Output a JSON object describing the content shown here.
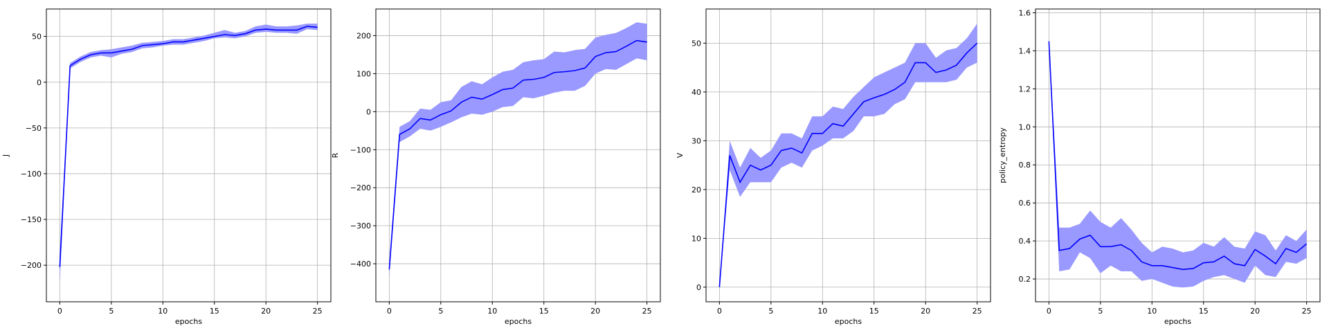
{
  "chart_data": [
    {
      "type": "line",
      "xlabel": "epochs",
      "ylabel": "J",
      "xlim": [
        -1.3,
        26.3
      ],
      "ylim": [
        -240,
        80
      ],
      "xticks": [
        0,
        5,
        10,
        15,
        20,
        25
      ],
      "yticks": [
        -200,
        -150,
        -100,
        -50,
        0,
        50
      ],
      "ytick_labels": [
        "−200",
        "−150",
        "−100",
        "−50",
        "0",
        "50"
      ],
      "grid": true,
      "line_color": "#0000ff",
      "band_color": "#9999ff",
      "x": [
        0,
        1,
        2,
        3,
        4,
        5,
        6,
        7,
        8,
        9,
        10,
        11,
        12,
        13,
        14,
        15,
        16,
        17,
        18,
        19,
        20,
        21,
        22,
        23,
        24,
        25
      ],
      "y": [
        -202,
        18,
        25,
        30,
        32,
        32,
        34,
        36,
        40,
        41,
        42,
        44,
        44,
        46,
        48,
        50,
        52,
        51,
        53,
        57,
        58,
        57,
        57,
        57,
        61,
        60
      ],
      "lower": [
        -220,
        15,
        22,
        27,
        29,
        27,
        31,
        33,
        37,
        38,
        40,
        41,
        41,
        43,
        45,
        48,
        49,
        48,
        50,
        54,
        55,
        54,
        54,
        53,
        58,
        57
      ],
      "upper": [
        -185,
        21,
        28,
        33,
        35,
        36,
        38,
        40,
        43,
        44,
        45,
        47,
        47,
        49,
        51,
        54,
        57,
        54,
        56,
        61,
        63,
        61,
        61,
        62,
        64,
        64
      ]
    },
    {
      "type": "line",
      "xlabel": "epochs",
      "ylabel": "R",
      "xlim": [
        -1.3,
        26.3
      ],
      "ylim": [
        -500,
        270
      ],
      "xticks": [
        0,
        5,
        10,
        15,
        20,
        25
      ],
      "yticks": [
        -400,
        -300,
        -200,
        -100,
        0,
        100,
        200
      ],
      "ytick_labels": [
        "−400",
        "−300",
        "−200",
        "−100",
        "0",
        "100",
        "200"
      ],
      "grid": true,
      "line_color": "#0000ff",
      "band_color": "#9999ff",
      "x": [
        0,
        1,
        2,
        3,
        4,
        5,
        6,
        7,
        8,
        9,
        10,
        11,
        12,
        13,
        14,
        15,
        16,
        17,
        18,
        19,
        20,
        21,
        22,
        23,
        24,
        25
      ],
      "y": [
        -415,
        -60,
        -45,
        -18,
        -22,
        -8,
        2,
        25,
        38,
        33,
        45,
        58,
        62,
        83,
        85,
        90,
        103,
        105,
        108,
        115,
        145,
        155,
        158,
        172,
        187,
        183
      ],
      "lower": [
        -435,
        -80,
        -65,
        -45,
        -50,
        -40,
        -28,
        -15,
        -5,
        -8,
        0,
        12,
        15,
        38,
        35,
        42,
        50,
        55,
        55,
        68,
        100,
        112,
        110,
        125,
        140,
        135
      ],
      "upper": [
        -395,
        -40,
        -25,
        8,
        5,
        25,
        30,
        65,
        80,
        72,
        90,
        105,
        110,
        130,
        135,
        138,
        158,
        156,
        162,
        165,
        195,
        202,
        207,
        220,
        235,
        231
      ]
    },
    {
      "type": "line",
      "xlabel": "epochs",
      "ylabel": "V",
      "xlim": [
        -1.3,
        26.3
      ],
      "ylim": [
        -3,
        57
      ],
      "xticks": [
        0,
        5,
        10,
        15,
        20,
        25
      ],
      "yticks": [
        0,
        10,
        20,
        30,
        40,
        50
      ],
      "ytick_labels": [
        "0",
        "10",
        "20",
        "30",
        "40",
        "50"
      ],
      "grid": true,
      "line_color": "#0000ff",
      "band_color": "#9999ff",
      "x": [
        0,
        1,
        2,
        3,
        4,
        5,
        6,
        7,
        8,
        9,
        10,
        11,
        12,
        13,
        14,
        15,
        16,
        17,
        18,
        19,
        20,
        21,
        22,
        23,
        24,
        25
      ],
      "y": [
        0,
        27,
        21.5,
        25,
        24,
        25,
        28,
        28.5,
        27.5,
        31.5,
        31.5,
        33.5,
        33,
        35.5,
        38,
        38.8,
        39.5,
        40.5,
        42,
        46,
        46,
        44,
        44.5,
        45.5,
        48,
        50
      ],
      "lower": [
        0,
        24,
        18.5,
        21.5,
        21.5,
        21.5,
        24.5,
        25.5,
        24.5,
        28,
        29,
        30.5,
        30.5,
        32,
        35,
        35,
        35.5,
        37.5,
        38.5,
        42,
        42,
        42,
        42,
        42.5,
        45,
        46
      ],
      "upper": [
        0,
        30,
        24.5,
        28.5,
        26.5,
        28,
        31.5,
        31.5,
        30.5,
        35,
        35,
        37,
        36.5,
        39,
        41,
        43,
        44,
        45,
        46,
        50,
        50,
        47,
        48.5,
        49,
        51,
        54
      ]
    },
    {
      "type": "line",
      "xlabel": "epochs",
      "ylabel": "policy_entropy",
      "xlim": [
        -1.3,
        26.3
      ],
      "ylim": [
        0.08,
        1.62
      ],
      "xticks": [
        0,
        5,
        10,
        15,
        20,
        25
      ],
      "yticks": [
        0.2,
        0.4,
        0.6,
        0.8,
        1.0,
        1.2,
        1.4,
        1.6
      ],
      "ytick_labels": [
        "0.2",
        "0.4",
        "0.6",
        "0.8",
        "1.0",
        "1.2",
        "1.4",
        "1.6"
      ],
      "grid": true,
      "line_color": "#0000ff",
      "band_color": "#9999ff",
      "x": [
        0,
        1,
        2,
        3,
        4,
        5,
        6,
        7,
        8,
        9,
        10,
        11,
        12,
        13,
        14,
        15,
        16,
        17,
        18,
        19,
        20,
        21,
        22,
        23,
        24,
        25
      ],
      "y": [
        1.45,
        0.35,
        0.36,
        0.41,
        0.43,
        0.37,
        0.37,
        0.38,
        0.35,
        0.29,
        0.27,
        0.27,
        0.26,
        0.25,
        0.255,
        0.285,
        0.29,
        0.32,
        0.28,
        0.27,
        0.355,
        0.32,
        0.28,
        0.36,
        0.34,
        0.385
      ],
      "lower": [
        1.43,
        0.24,
        0.25,
        0.34,
        0.31,
        0.23,
        0.27,
        0.24,
        0.24,
        0.19,
        0.2,
        0.18,
        0.16,
        0.155,
        0.16,
        0.19,
        0.21,
        0.22,
        0.2,
        0.18,
        0.27,
        0.22,
        0.21,
        0.29,
        0.28,
        0.31
      ],
      "upper": [
        1.47,
        0.47,
        0.47,
        0.49,
        0.56,
        0.5,
        0.47,
        0.52,
        0.46,
        0.39,
        0.34,
        0.37,
        0.36,
        0.34,
        0.35,
        0.39,
        0.37,
        0.42,
        0.37,
        0.36,
        0.45,
        0.43,
        0.35,
        0.43,
        0.4,
        0.46
      ]
    }
  ]
}
